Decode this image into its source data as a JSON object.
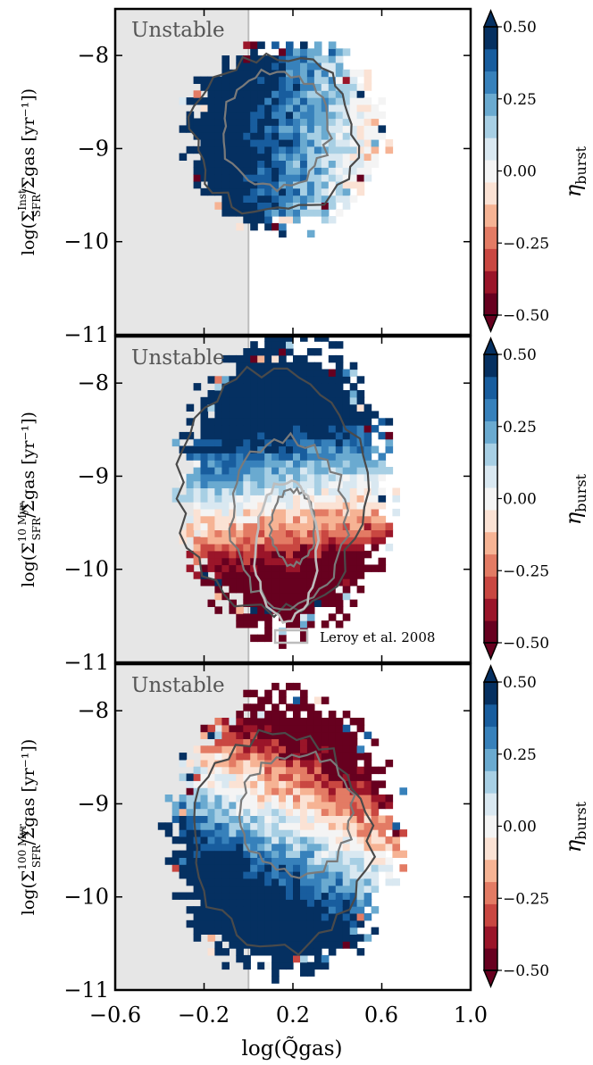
{
  "figure": {
    "xlabel": "log(Q̃gas)",
    "x_ticks": [
      "−0.6",
      "−0.2",
      "0.2",
      "0.6",
      "1.0"
    ],
    "y_ticks": [
      "−8",
      "−9",
      "−10",
      "−11"
    ],
    "colorbar_ticks": [
      "0.50",
      "0.25",
      "0.00",
      "−0.25",
      "−0.50"
    ],
    "colorbar_label": "ηburst",
    "unstable_label": "Unstable",
    "legend_label": "Leroy et al. 2008"
  },
  "colors": {
    "diverging": [
      "#67001f",
      "#9a1529",
      "#c94741",
      "#e37b64",
      "#f6b394",
      "#fbe2d4",
      "#f4f4f4",
      "#d9e8f1",
      "#a7cfe4",
      "#6aaad0",
      "#3781bb",
      "#185d9e",
      "#053061"
    ],
    "unstable_shade": "#e6e6e6",
    "contour_dark": "#4a4a4a",
    "contour_mid": "#7a7a7a",
    "contour_leroy": "#bdbdbd"
  },
  "chart_data": [
    {
      "type": "heatmap",
      "panel": "top",
      "ylabel": "log(Σ^Inst._SFR / Σgas [yr⁻¹])",
      "ylabel_parts": {
        "lead": "log(Σ",
        "sup": "Inst.",
        "sub": "SFR",
        "tail": "/Σgas [yr⁻¹])"
      },
      "xlim": [
        -0.6,
        1.0
      ],
      "ylim": [
        -11,
        -7.5
      ],
      "unstable_below_x": 0.0,
      "colorbar_range": [
        -0.5,
        0.5
      ],
      "pattern": {
        "base": 0.5,
        "dx": -1.1,
        "dy": 0.05,
        "x0": 0.05,
        "y0": -9.0,
        "noise": 0.12
      },
      "region": {
        "cx": 0.16,
        "cy": -8.85,
        "rx": 0.44,
        "ry": 1.0
      },
      "contours": [
        {
          "cx": 0.12,
          "cy": -8.85,
          "rx": 0.37,
          "ry": 0.85
        },
        {
          "cx": 0.12,
          "cy": -8.8,
          "rx": 0.24,
          "ry": 0.62
        }
      ]
    },
    {
      "type": "heatmap",
      "panel": "middle",
      "ylabel": "log(Σ^10Myr_SFR / Σgas [yr⁻¹])",
      "ylabel_parts": {
        "lead": "log(Σ",
        "sup": "10 Myr",
        "sub": "SFR",
        "tail": "/Σgas [yr⁻¹])"
      },
      "xlim": [
        -0.6,
        1.0
      ],
      "ylim": [
        -11,
        -7.5
      ],
      "unstable_below_x": 0.0,
      "colorbar_range": [
        -0.5,
        0.5
      ],
      "pattern": {
        "base": 0.0,
        "dx": -0.25,
        "dy": 0.72,
        "x0": 0.2,
        "y0": -9.25,
        "noise": 0.1
      },
      "region": {
        "cx": 0.17,
        "cy": -9.1,
        "rx": 0.47,
        "ry": 1.55
      },
      "contours": [
        {
          "cx": 0.1,
          "cy": -9.15,
          "rx": 0.42,
          "ry": 1.3
        },
        {
          "cx": 0.18,
          "cy": -9.5,
          "rx": 0.26,
          "ry": 0.9
        },
        {
          "cx": 0.2,
          "cy": -9.55,
          "rx": 0.1,
          "ry": 0.4
        }
      ],
      "leroy_contour": {
        "cx": 0.17,
        "cy": -9.8,
        "rx": 0.14,
        "ry": 0.75
      }
    },
    {
      "type": "heatmap",
      "panel": "bottom",
      "ylabel": "log(Σ^100Myr_SFR / Σgas [yr⁻¹])",
      "ylabel_parts": {
        "lead": "log(Σ",
        "sup": "100 Myr",
        "sub": "SFR",
        "tail": "/Σgas [yr⁻¹])"
      },
      "xlim": [
        -0.6,
        1.0
      ],
      "ylim": [
        -11,
        -7.5
      ],
      "unstable_below_x": 0.0,
      "colorbar_range": [
        -0.5,
        0.5
      ],
      "pattern": {
        "base": 0.1,
        "dx": -0.75,
        "dy": -0.62,
        "x0": 0.2,
        "y0": -9.3,
        "noise": 0.12
      },
      "region": {
        "cx": 0.16,
        "cy": -9.35,
        "rx": 0.5,
        "ry": 1.5
      },
      "contours": [
        {
          "cx": 0.15,
          "cy": -9.4,
          "rx": 0.4,
          "ry": 1.15
        },
        {
          "cx": 0.22,
          "cy": -9.1,
          "rx": 0.25,
          "ry": 0.65
        }
      ]
    }
  ]
}
